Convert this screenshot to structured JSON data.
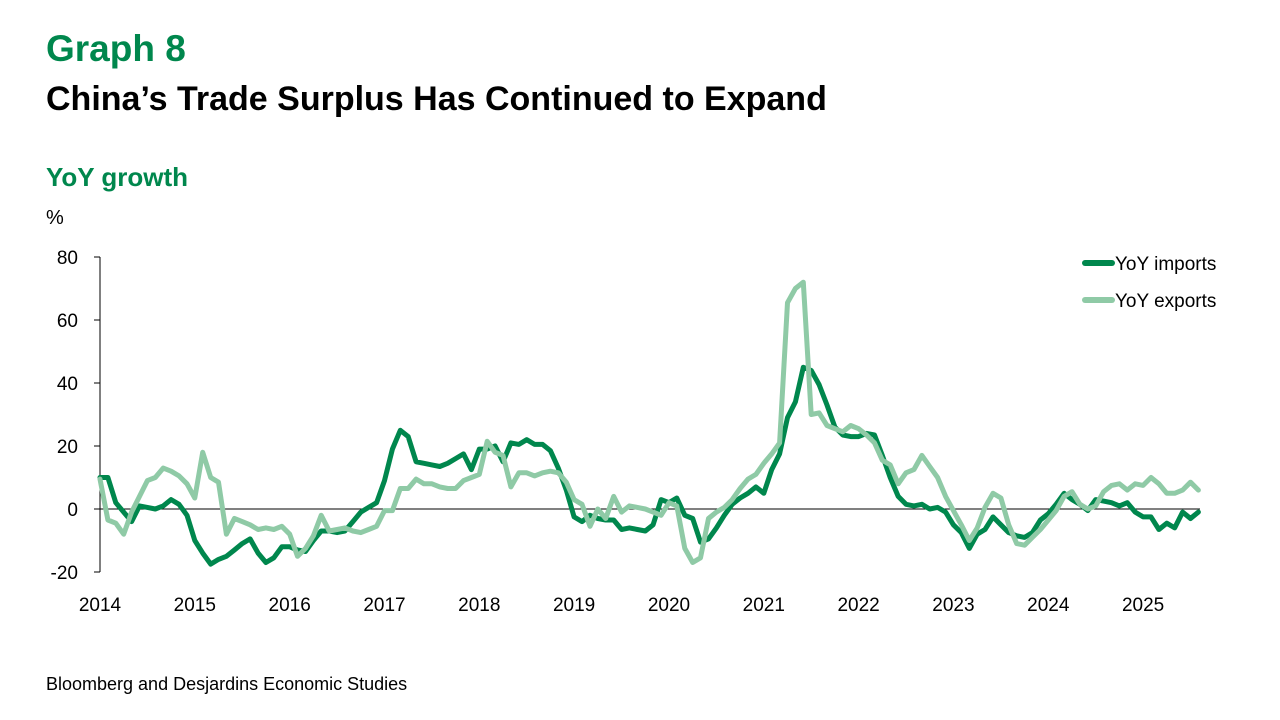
{
  "header": {
    "graph_label": "Graph 8",
    "title": "China’s Trade Surplus Has Continued to Expand",
    "subtitle": "YoY growth",
    "unit": "%"
  },
  "footer": {
    "source": "Bloomberg and Desjardins Economic Studies"
  },
  "colors": {
    "imports": "#00874d",
    "exports": "#8fcaa6",
    "accent": "#00874d"
  },
  "chart_data": {
    "type": "line",
    "ylabel": "%",
    "ylim": [
      -20,
      80
    ],
    "yticks": [
      -20,
      0,
      20,
      40,
      60,
      80
    ],
    "xlim": [
      2014.0,
      2025.6
    ],
    "xticks": [
      2014,
      2015,
      2016,
      2017,
      2018,
      2019,
      2020,
      2021,
      2022,
      2023,
      2024,
      2025
    ],
    "grid": false,
    "legend_position": "top-right",
    "series": [
      {
        "name": "YoY imports",
        "color": "#00874d",
        "points": [
          [
            2014.0,
            10
          ],
          [
            2014.083,
            10
          ],
          [
            2014.167,
            2
          ],
          [
            2014.25,
            -1
          ],
          [
            2014.333,
            -4
          ],
          [
            2014.417,
            1
          ],
          [
            2014.5,
            0.5
          ],
          [
            2014.583,
            0
          ],
          [
            2014.667,
            1
          ],
          [
            2014.75,
            3
          ],
          [
            2014.833,
            1.5
          ],
          [
            2014.917,
            -2
          ],
          [
            2015.0,
            -10
          ],
          [
            2015.083,
            -14
          ],
          [
            2015.167,
            -17.5
          ],
          [
            2015.25,
            -16
          ],
          [
            2015.333,
            -15
          ],
          [
            2015.417,
            -13
          ],
          [
            2015.5,
            -11
          ],
          [
            2015.583,
            -9.5
          ],
          [
            2015.667,
            -14
          ],
          [
            2015.75,
            -17
          ],
          [
            2015.833,
            -15.5
          ],
          [
            2015.917,
            -12
          ],
          [
            2016.0,
            -12
          ],
          [
            2016.083,
            -13
          ],
          [
            2016.167,
            -13.5
          ],
          [
            2016.25,
            -10
          ],
          [
            2016.333,
            -7
          ],
          [
            2016.417,
            -7
          ],
          [
            2016.5,
            -7.5
          ],
          [
            2016.583,
            -7
          ],
          [
            2016.667,
            -4
          ],
          [
            2016.75,
            -1
          ],
          [
            2016.833,
            0.5
          ],
          [
            2016.917,
            2
          ],
          [
            2017.0,
            9
          ],
          [
            2017.083,
            19
          ],
          [
            2017.167,
            25
          ],
          [
            2017.25,
            23
          ],
          [
            2017.333,
            15
          ],
          [
            2017.417,
            14.5
          ],
          [
            2017.5,
            14
          ],
          [
            2017.583,
            13.5
          ],
          [
            2017.667,
            14.5
          ],
          [
            2017.75,
            16
          ],
          [
            2017.833,
            17.5
          ],
          [
            2017.917,
            12.5
          ],
          [
            2018.0,
            19
          ],
          [
            2018.083,
            19
          ],
          [
            2018.167,
            20
          ],
          [
            2018.25,
            15
          ],
          [
            2018.333,
            21
          ],
          [
            2018.417,
            20.5
          ],
          [
            2018.5,
            22
          ],
          [
            2018.583,
            20.5
          ],
          [
            2018.667,
            20.5
          ],
          [
            2018.75,
            18.5
          ],
          [
            2018.833,
            13
          ],
          [
            2018.917,
            6
          ],
          [
            2019.0,
            -2.5
          ],
          [
            2019.083,
            -4
          ],
          [
            2019.167,
            -2
          ],
          [
            2019.25,
            -3
          ],
          [
            2019.333,
            -3.5
          ],
          [
            2019.417,
            -3.5
          ],
          [
            2019.5,
            -6.5
          ],
          [
            2019.583,
            -6
          ],
          [
            2019.667,
            -6.5
          ],
          [
            2019.75,
            -7
          ],
          [
            2019.833,
            -5
          ],
          [
            2019.917,
            3
          ],
          [
            2020.0,
            2
          ],
          [
            2020.083,
            3.5
          ],
          [
            2020.167,
            -2
          ],
          [
            2020.25,
            -3
          ],
          [
            2020.333,
            -10.5
          ],
          [
            2020.417,
            -9.5
          ],
          [
            2020.5,
            -6
          ],
          [
            2020.583,
            -2
          ],
          [
            2020.667,
            1.5
          ],
          [
            2020.75,
            3.5
          ],
          [
            2020.833,
            5
          ],
          [
            2020.917,
            7
          ],
          [
            2021.0,
            5
          ],
          [
            2021.083,
            12.5
          ],
          [
            2021.167,
            17.5
          ],
          [
            2021.25,
            29
          ],
          [
            2021.333,
            34
          ],
          [
            2021.417,
            45
          ],
          [
            2021.5,
            44
          ],
          [
            2021.583,
            39.5
          ],
          [
            2021.667,
            33
          ],
          [
            2021.75,
            26
          ],
          [
            2021.833,
            23.5
          ],
          [
            2021.917,
            23
          ],
          [
            2022.0,
            23
          ],
          [
            2022.083,
            24
          ],
          [
            2022.167,
            23.5
          ],
          [
            2022.25,
            17
          ],
          [
            2022.333,
            10
          ],
          [
            2022.417,
            4
          ],
          [
            2022.5,
            1.5
          ],
          [
            2022.583,
            1
          ],
          [
            2022.667,
            1.5
          ],
          [
            2022.75,
            0
          ],
          [
            2022.833,
            0.5
          ],
          [
            2022.917,
            -1
          ],
          [
            2023.0,
            -5
          ],
          [
            2023.083,
            -7.5
          ],
          [
            2023.167,
            -12.5
          ],
          [
            2023.25,
            -8
          ],
          [
            2023.333,
            -6.5
          ],
          [
            2023.417,
            -2.5
          ],
          [
            2023.5,
            -5
          ],
          [
            2023.583,
            -7.5
          ],
          [
            2023.667,
            -8.5
          ],
          [
            2023.75,
            -9
          ],
          [
            2023.833,
            -7.5
          ],
          [
            2023.917,
            -3.5
          ],
          [
            2024.0,
            -1.5
          ],
          [
            2024.083,
            1.5
          ],
          [
            2024.167,
            5
          ],
          [
            2024.25,
            3
          ],
          [
            2024.333,
            1.5
          ],
          [
            2024.417,
            -0.5
          ],
          [
            2024.5,
            3
          ],
          [
            2024.583,
            2.5
          ],
          [
            2024.667,
            2
          ],
          [
            2024.75,
            1
          ],
          [
            2024.833,
            2
          ],
          [
            2024.917,
            -1
          ],
          [
            2025.0,
            -2.5
          ],
          [
            2025.083,
            -2.5
          ],
          [
            2025.167,
            -6.5
          ],
          [
            2025.25,
            -4.5
          ],
          [
            2025.333,
            -6
          ],
          [
            2025.417,
            -1
          ],
          [
            2025.5,
            -3
          ],
          [
            2025.583,
            -1
          ]
        ]
      },
      {
        "name": "YoY exports",
        "color": "#8fcaa6",
        "points": [
          [
            2014.0,
            9.5
          ],
          [
            2014.083,
            -3.5
          ],
          [
            2014.167,
            -4.5
          ],
          [
            2014.25,
            -8
          ],
          [
            2014.333,
            -1
          ],
          [
            2014.417,
            4
          ],
          [
            2014.5,
            9
          ],
          [
            2014.583,
            10
          ],
          [
            2014.667,
            13
          ],
          [
            2014.75,
            12
          ],
          [
            2014.833,
            10.5
          ],
          [
            2014.917,
            8
          ],
          [
            2015.0,
            3.5
          ],
          [
            2015.083,
            18
          ],
          [
            2015.167,
            10
          ],
          [
            2015.25,
            8.5
          ],
          [
            2015.333,
            -8
          ],
          [
            2015.417,
            -3
          ],
          [
            2015.5,
            -4
          ],
          [
            2015.583,
            -5
          ],
          [
            2015.667,
            -6.5
          ],
          [
            2015.75,
            -6
          ],
          [
            2015.833,
            -6.5
          ],
          [
            2015.917,
            -5.5
          ],
          [
            2016.0,
            -8
          ],
          [
            2016.083,
            -15
          ],
          [
            2016.167,
            -12.5
          ],
          [
            2016.25,
            -8.5
          ],
          [
            2016.333,
            -2
          ],
          [
            2016.417,
            -7
          ],
          [
            2016.5,
            -6.5
          ],
          [
            2016.583,
            -6
          ],
          [
            2016.667,
            -7
          ],
          [
            2016.75,
            -7.5
          ],
          [
            2016.833,
            -6.5
          ],
          [
            2016.917,
            -5.5
          ],
          [
            2017.0,
            -0.5
          ],
          [
            2017.083,
            -0.5
          ],
          [
            2017.167,
            6.5
          ],
          [
            2017.25,
            6.5
          ],
          [
            2017.333,
            9.5
          ],
          [
            2017.417,
            8
          ],
          [
            2017.5,
            8
          ],
          [
            2017.583,
            7
          ],
          [
            2017.667,
            6.5
          ],
          [
            2017.75,
            6.5
          ],
          [
            2017.833,
            9
          ],
          [
            2017.917,
            10
          ],
          [
            2018.0,
            11
          ],
          [
            2018.083,
            21.5
          ],
          [
            2018.167,
            18
          ],
          [
            2018.25,
            17
          ],
          [
            2018.333,
            7
          ],
          [
            2018.417,
            11.5
          ],
          [
            2018.5,
            11.5
          ],
          [
            2018.583,
            10.5
          ],
          [
            2018.667,
            11.5
          ],
          [
            2018.75,
            12
          ],
          [
            2018.833,
            11.5
          ],
          [
            2018.917,
            8.5
          ],
          [
            2019.0,
            3
          ],
          [
            2019.083,
            1.5
          ],
          [
            2019.167,
            -5.5
          ],
          [
            2019.25,
            0
          ],
          [
            2019.333,
            -3
          ],
          [
            2019.417,
            4
          ],
          [
            2019.5,
            -1
          ],
          [
            2019.583,
            1
          ],
          [
            2019.667,
            0.5
          ],
          [
            2019.75,
            0
          ],
          [
            2019.833,
            -1
          ],
          [
            2019.917,
            -2
          ],
          [
            2020.0,
            2
          ],
          [
            2020.083,
            1
          ],
          [
            2020.167,
            -12.5
          ],
          [
            2020.25,
            -17
          ],
          [
            2020.333,
            -15.5
          ],
          [
            2020.417,
            -3
          ],
          [
            2020.5,
            -1
          ],
          [
            2020.583,
            0.5
          ],
          [
            2020.667,
            3
          ],
          [
            2020.75,
            6.5
          ],
          [
            2020.833,
            9.5
          ],
          [
            2020.917,
            11
          ],
          [
            2021.0,
            14.5
          ],
          [
            2021.083,
            17.5
          ],
          [
            2021.167,
            21
          ],
          [
            2021.25,
            65.5
          ],
          [
            2021.333,
            70
          ],
          [
            2021.417,
            72
          ],
          [
            2021.5,
            30
          ],
          [
            2021.583,
            30.5
          ],
          [
            2021.667,
            26.5
          ],
          [
            2021.75,
            25.5
          ],
          [
            2021.833,
            24.5
          ],
          [
            2021.917,
            26.5
          ],
          [
            2022.0,
            25.5
          ],
          [
            2022.083,
            23.5
          ],
          [
            2022.167,
            21
          ],
          [
            2022.25,
            15.5
          ],
          [
            2022.333,
            14
          ],
          [
            2022.417,
            8
          ],
          [
            2022.5,
            11.5
          ],
          [
            2022.583,
            12.5
          ],
          [
            2022.667,
            17
          ],
          [
            2022.75,
            13.5
          ],
          [
            2022.833,
            10
          ],
          [
            2022.917,
            4
          ],
          [
            2023.0,
            -0.5
          ],
          [
            2023.083,
            -5
          ],
          [
            2023.167,
            -10
          ],
          [
            2023.25,
            -6
          ],
          [
            2023.333,
            0.5
          ],
          [
            2023.417,
            5
          ],
          [
            2023.5,
            3.5
          ],
          [
            2023.583,
            -5
          ],
          [
            2023.667,
            -11
          ],
          [
            2023.75,
            -11.5
          ],
          [
            2023.833,
            -9
          ],
          [
            2023.917,
            -6.5
          ],
          [
            2024.0,
            -3.5
          ],
          [
            2024.083,
            -0.5
          ],
          [
            2024.167,
            4
          ],
          [
            2024.25,
            5.5
          ],
          [
            2024.333,
            1.5
          ],
          [
            2024.417,
            0
          ],
          [
            2024.5,
            1
          ],
          [
            2024.583,
            5.5
          ],
          [
            2024.667,
            7.5
          ],
          [
            2024.75,
            8
          ],
          [
            2024.833,
            6
          ],
          [
            2024.917,
            8
          ],
          [
            2025.0,
            7.5
          ],
          [
            2025.083,
            10
          ],
          [
            2025.167,
            8
          ],
          [
            2025.25,
            5
          ],
          [
            2025.333,
            5
          ],
          [
            2025.417,
            6
          ],
          [
            2025.5,
            8.5
          ],
          [
            2025.583,
            6
          ]
        ]
      }
    ]
  }
}
